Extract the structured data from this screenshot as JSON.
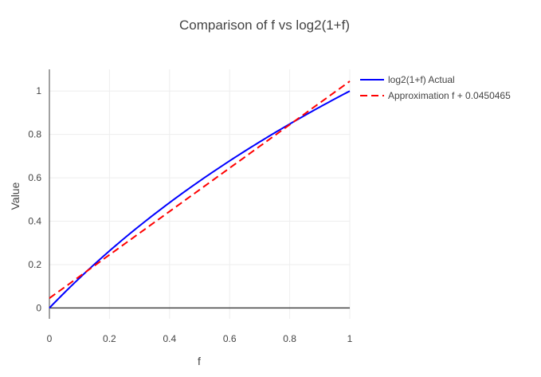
{
  "chart_data": {
    "type": "line",
    "title": "Comparison of f vs log2(1+f)",
    "xlabel": "f",
    "ylabel": "Value",
    "xlim": [
      0,
      1
    ],
    "ylim": [
      -0.05,
      1.1
    ],
    "x_ticks": [
      "0",
      "0.2",
      "0.4",
      "0.6",
      "0.8",
      "1"
    ],
    "y_ticks": [
      "0",
      "0.2",
      "0.4",
      "0.6",
      "0.8",
      "1"
    ],
    "grid": true,
    "legend_position": "top-right",
    "x": [
      0,
      0.1,
      0.2,
      0.3,
      0.4,
      0.5,
      0.6,
      0.7,
      0.8,
      0.9,
      1.0
    ],
    "series": [
      {
        "name": "log2(1+f) Actual",
        "color": "#0000ff",
        "style": "solid",
        "values": [
          0,
          0.1375,
          0.263,
          0.3785,
          0.4854,
          0.585,
          0.6781,
          0.7655,
          0.848,
          0.926,
          1.0
        ]
      },
      {
        "name": "Approximation f + 0.0450465",
        "color": "#ff0000",
        "style": "dash",
        "values": [
          0.045,
          0.145,
          0.245,
          0.345,
          0.445,
          0.545,
          0.645,
          0.745,
          0.845,
          0.945,
          1.045
        ]
      }
    ]
  }
}
